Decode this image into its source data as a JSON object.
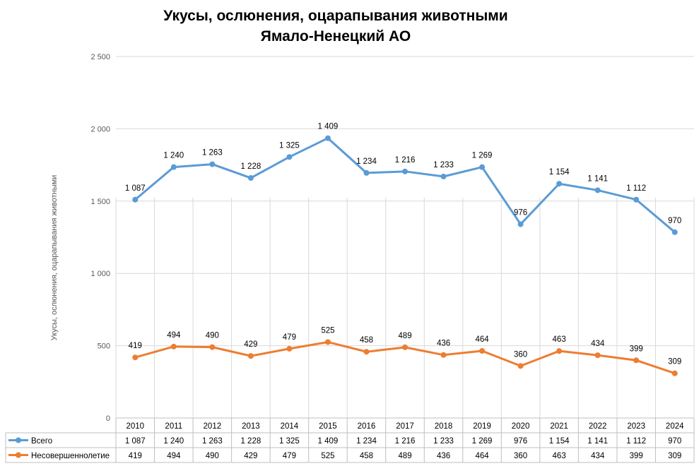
{
  "chart_data": {
    "type": "line",
    "title": "Укусы, ослюнения, оцарапывания животными",
    "subtitle": "Ямало-Ненецкий АО",
    "ylabel": "Укусы, ослюнения, оцарапывания животными",
    "xlabel": "",
    "ylim": [
      0,
      2500
    ],
    "y_ticks": [
      0,
      500,
      1000,
      1500,
      2000,
      2500
    ],
    "y_tick_labels": [
      "0",
      "500",
      "1 000",
      "1 500",
      "2 000",
      "2 500"
    ],
    "grid": true,
    "legend": "data-table-bottom",
    "categories": [
      "2010",
      "2011",
      "2012",
      "2013",
      "2014",
      "2015",
      "2016",
      "2017",
      "2018",
      "2019",
      "2020",
      "2021",
      "2022",
      "2023",
      "2024"
    ],
    "series": [
      {
        "name": "Всего",
        "color": "#5b9bd5",
        "values": [
          1510,
          1735,
          1755,
          1660,
          1805,
          1935,
          1695,
          1705,
          1670,
          1735,
          1340,
          1620,
          1575,
          1510,
          1285
        ],
        "labels": [
          "1 087",
          "1 240",
          "1 263",
          "1 228",
          "1 325",
          "1 409",
          "1 234",
          "1 216",
          "1 233",
          "1 269",
          "976",
          "1 154",
          "1 141",
          "1 112",
          "970"
        ]
      },
      {
        "name": "Несовершеннолетие",
        "color": "#ed7d31",
        "values": [
          419,
          494,
          490,
          429,
          479,
          525,
          458,
          489,
          436,
          464,
          360,
          463,
          434,
          399,
          309
        ],
        "labels": [
          "419",
          "494",
          "490",
          "429",
          "479",
          "525",
          "458",
          "489",
          "436",
          "464",
          "360",
          "463",
          "434",
          "399",
          "309"
        ]
      }
    ]
  }
}
